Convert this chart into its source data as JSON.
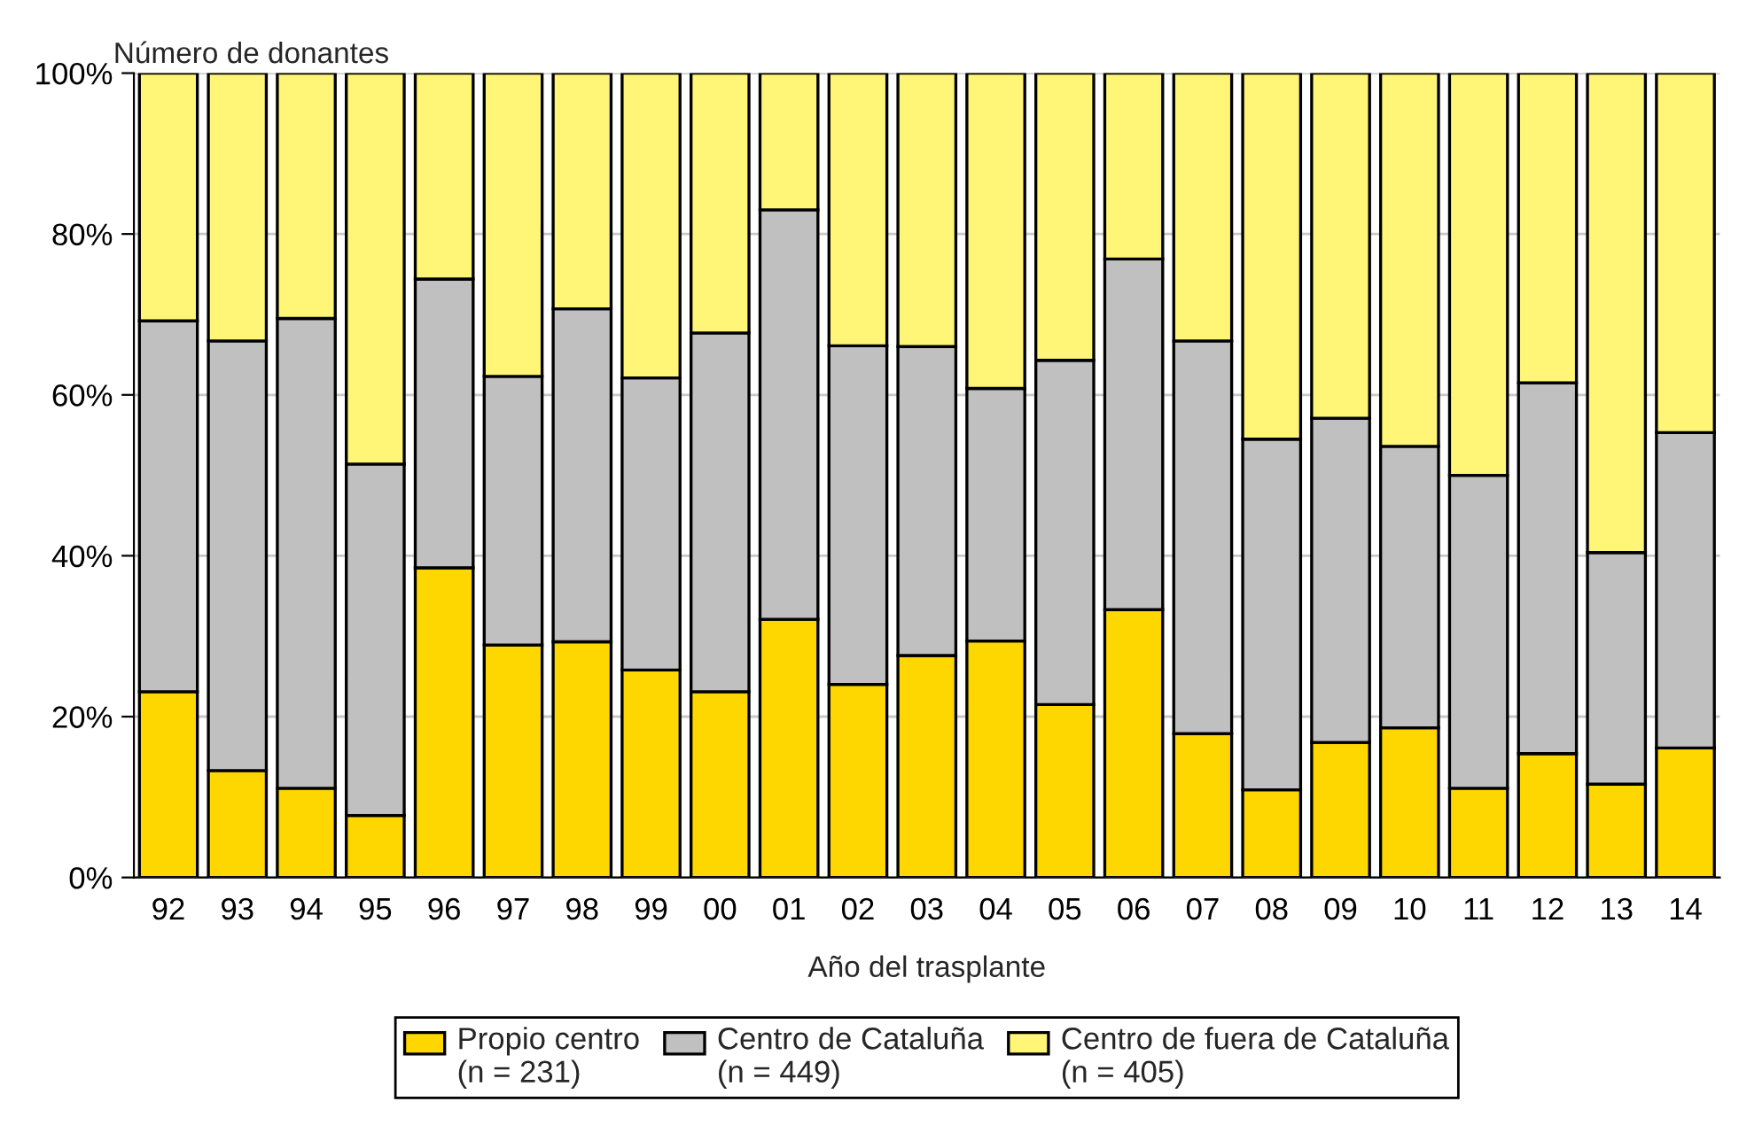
{
  "chart_data": {
    "type": "bar",
    "stacked": true,
    "ylabel": "Número de donantes",
    "xlabel": "Año del trasplante",
    "categories": [
      "92",
      "93",
      "94",
      "95",
      "96",
      "97",
      "98",
      "99",
      "00",
      "01",
      "02",
      "03",
      "04",
      "05",
      "06",
      "07",
      "08",
      "09",
      "10",
      "11",
      "12",
      "13",
      "14"
    ],
    "series": [
      {
        "name": "Propio centro\n(n = 231)",
        "color": "#ffd700",
        "values": [
          23.1,
          13.3,
          11.1,
          7.7,
          38.5,
          28.9,
          29.3,
          25.8,
          23.1,
          32.1,
          24.0,
          27.6,
          29.4,
          21.5,
          33.3,
          17.9,
          10.9,
          16.8,
          18.6,
          11.1,
          15.4,
          11.6,
          16.1
        ]
      },
      {
        "name": "Centro de Cataluña\n(n = 449)",
        "color": "#c0c0c0",
        "values": [
          46.1,
          53.4,
          58.4,
          43.7,
          35.9,
          33.4,
          41.4,
          36.3,
          44.6,
          50.9,
          42.1,
          38.4,
          31.4,
          42.8,
          43.6,
          48.8,
          43.6,
          40.3,
          35.0,
          38.9,
          46.1,
          28.8,
          39.2
        ]
      },
      {
        "name": "Centro de fuera de Cataluña\n(n = 405)",
        "color": "#fff577",
        "values": [
          30.8,
          33.3,
          30.5,
          48.6,
          25.6,
          37.7,
          29.3,
          37.9,
          32.3,
          17.0,
          33.9,
          34.0,
          39.2,
          35.7,
          23.1,
          33.3,
          45.5,
          42.9,
          46.4,
          50.0,
          38.5,
          59.6,
          44.7
        ]
      }
    ],
    "ylim": [
      0,
      100
    ],
    "yticks": [
      {
        "value": 0,
        "label": "0%"
      },
      {
        "value": 20,
        "label": "20%"
      },
      {
        "value": 40,
        "label": "40%"
      },
      {
        "value": 60,
        "label": "60%"
      },
      {
        "value": 80,
        "label": "80%"
      },
      {
        "value": 100,
        "label": "100%"
      }
    ],
    "grid": "y",
    "legend": "bottom"
  }
}
